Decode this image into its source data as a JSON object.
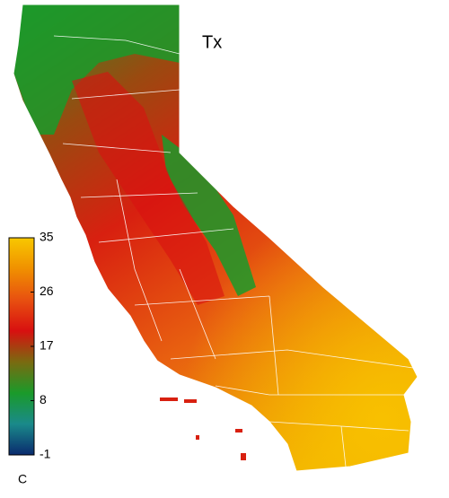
{
  "title": "Tx",
  "colorbar": {
    "unit": "C",
    "lim": [
      -1,
      35
    ],
    "ticks": [
      -1,
      8,
      17,
      26,
      35
    ],
    "colors": [
      "#0a2a6e",
      "#1a8a8a",
      "#1a9a2a",
      "#7a6a10",
      "#d81010",
      "#e85010",
      "#f09000",
      "#f8c800"
    ]
  }
}
